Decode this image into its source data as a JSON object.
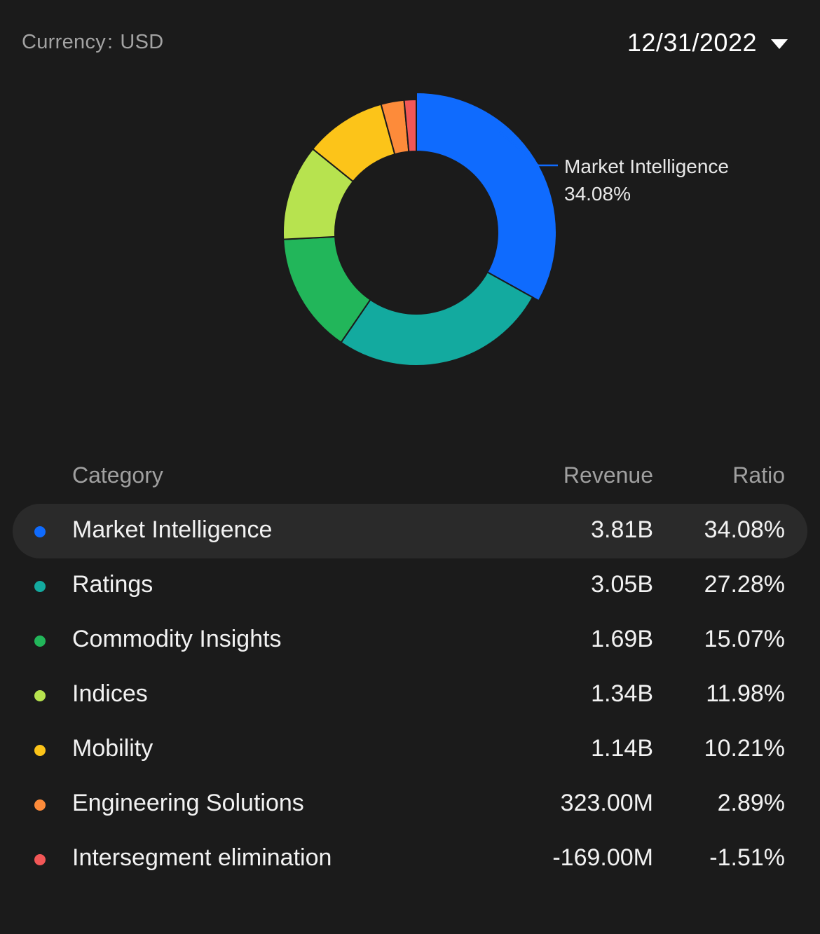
{
  "header": {
    "currency_label": "Currency",
    "currency_separator": ":",
    "currency_value": "USD",
    "period": "12/31/2022"
  },
  "callout": {
    "name": "Market Intelligence",
    "value": "34.08%"
  },
  "table": {
    "headers": {
      "category": "Category",
      "revenue": "Revenue",
      "ratio": "Ratio"
    },
    "rows": [
      {
        "name": "Market Intelligence",
        "revenue": "3.81B",
        "ratio": "34.08%",
        "color": "#0f6bfe",
        "selected": true
      },
      {
        "name": "Ratings",
        "revenue": "3.05B",
        "ratio": "27.28%",
        "color": "#13aa9f",
        "selected": false
      },
      {
        "name": "Commodity Insights",
        "revenue": "1.69B",
        "ratio": "15.07%",
        "color": "#22b65a",
        "selected": false
      },
      {
        "name": "Indices",
        "revenue": "1.34B",
        "ratio": "11.98%",
        "color": "#b7e34f",
        "selected": false
      },
      {
        "name": "Mobility",
        "revenue": "1.14B",
        "ratio": "10.21%",
        "color": "#fcc419",
        "selected": false
      },
      {
        "name": "Engineering Solutions",
        "revenue": "323.00M",
        "ratio": "2.89%",
        "color": "#fd8b3a",
        "selected": false
      },
      {
        "name": "Intersegment elimination",
        "revenue": "-169.00M",
        "ratio": "-1.51%",
        "color": "#f25757",
        "selected": false
      }
    ]
  },
  "chart_data": {
    "type": "pie",
    "variant": "donut",
    "categories": [
      "Market Intelligence",
      "Ratings",
      "Commodity Insights",
      "Indices",
      "Mobility",
      "Engineering Solutions",
      "Intersegment elimination"
    ],
    "values": [
      34.08,
      27.28,
      15.07,
      11.98,
      10.21,
      2.89,
      1.51
    ],
    "colors": [
      "#0f6bfe",
      "#13aa9f",
      "#22b65a",
      "#b7e34f",
      "#fcc419",
      "#fd8b3a",
      "#f25757"
    ],
    "highlighted": "Market Intelligence"
  }
}
